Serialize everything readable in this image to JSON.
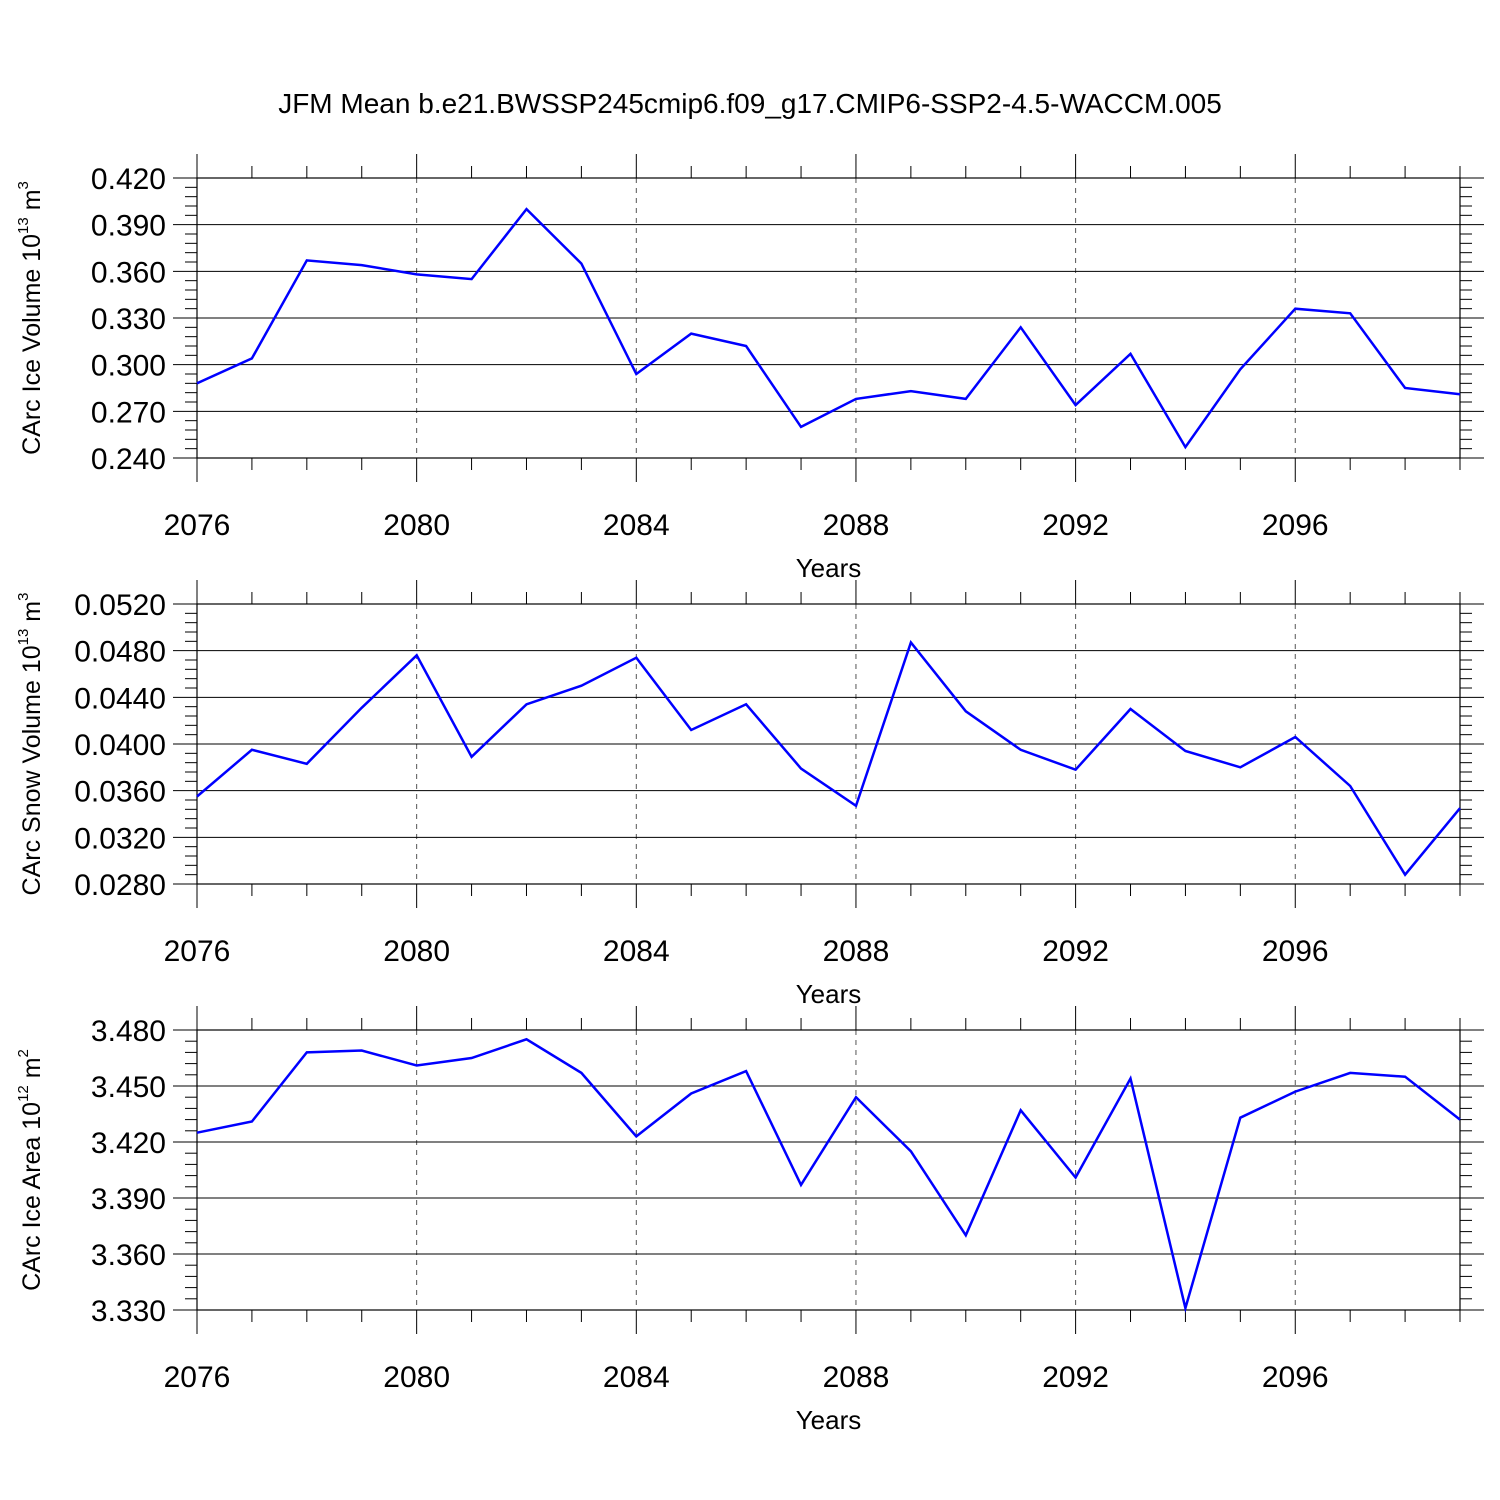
{
  "title": "JFM Mean b.e21.BWSSP245cmip6.f09_g17.CMIP6-SSP2-4.5-WACCM.005",
  "line_color": "#0000ff",
  "chart_data": [
    {
      "type": "line",
      "ylabel": {
        "text": "CArc Ice Volume 10",
        "sup": "13",
        "unit": " m",
        "unit_sup": "3"
      },
      "xlabel": "Years",
      "xlim": [
        2076,
        2099
      ],
      "ylim": [
        0.24,
        0.42
      ],
      "xticks": [
        "2076",
        "2080",
        "2084",
        "2088",
        "2092",
        "2096"
      ],
      "yticks": [
        "0.240",
        "0.270",
        "0.300",
        "0.330",
        "0.360",
        "0.390",
        "0.420"
      ],
      "x": [
        2076,
        2077,
        2078,
        2079,
        2080,
        2081,
        2082,
        2083,
        2084,
        2085,
        2086,
        2087,
        2088,
        2089,
        2090,
        2091,
        2092,
        2093,
        2094,
        2095,
        2096,
        2097,
        2098,
        2099
      ],
      "values": [
        0.288,
        0.304,
        0.367,
        0.364,
        0.358,
        0.355,
        0.4,
        0.365,
        0.294,
        0.32,
        0.312,
        0.26,
        0.278,
        0.283,
        0.278,
        0.324,
        0.274,
        0.307,
        0.247,
        0.297,
        0.336,
        0.333,
        0.285,
        0.281
      ]
    },
    {
      "type": "line",
      "ylabel": {
        "text": "CArc Snow Volume 10",
        "sup": "13",
        "unit": " m",
        "unit_sup": "3"
      },
      "xlabel": "Years",
      "xlim": [
        2076,
        2099
      ],
      "ylim": [
        0.028,
        0.052
      ],
      "xticks": [
        "2076",
        "2080",
        "2084",
        "2088",
        "2092",
        "2096"
      ],
      "yticks": [
        "0.0280",
        "0.0320",
        "0.0360",
        "0.0400",
        "0.0440",
        "0.0480",
        "0.0520"
      ],
      "x": [
        2076,
        2077,
        2078,
        2079,
        2080,
        2081,
        2082,
        2083,
        2084,
        2085,
        2086,
        2087,
        2088,
        2089,
        2090,
        2091,
        2092,
        2093,
        2094,
        2095,
        2096,
        2097,
        2098,
        2099
      ],
      "values": [
        0.0355,
        0.0395,
        0.0383,
        0.0431,
        0.0476,
        0.0389,
        0.0434,
        0.045,
        0.0474,
        0.0412,
        0.0434,
        0.0379,
        0.0347,
        0.0487,
        0.0428,
        0.0395,
        0.0378,
        0.043,
        0.0394,
        0.038,
        0.0406,
        0.0364,
        0.0288,
        0.0345
      ]
    },
    {
      "type": "line",
      "ylabel": {
        "text": "CArc Ice Area 10",
        "sup": "12",
        "unit": " m",
        "unit_sup": "2"
      },
      "xlabel": "Years",
      "xlim": [
        2076,
        2099
      ],
      "ylim": [
        3.33,
        3.48
      ],
      "xticks": [
        "2076",
        "2080",
        "2084",
        "2088",
        "2092",
        "2096"
      ],
      "yticks": [
        "3.330",
        "3.360",
        "3.390",
        "3.420",
        "3.450",
        "3.480"
      ],
      "x": [
        2076,
        2077,
        2078,
        2079,
        2080,
        2081,
        2082,
        2083,
        2084,
        2085,
        2086,
        2087,
        2088,
        2089,
        2090,
        2091,
        2092,
        2093,
        2094,
        2095,
        2096,
        2097,
        2098,
        2099
      ],
      "values": [
        3.425,
        3.431,
        3.468,
        3.469,
        3.461,
        3.465,
        3.475,
        3.457,
        3.423,
        3.446,
        3.458,
        3.397,
        3.444,
        3.415,
        3.37,
        3.437,
        3.401,
        3.454,
        3.331,
        3.433,
        3.447,
        3.457,
        3.455,
        3.432
      ]
    }
  ]
}
